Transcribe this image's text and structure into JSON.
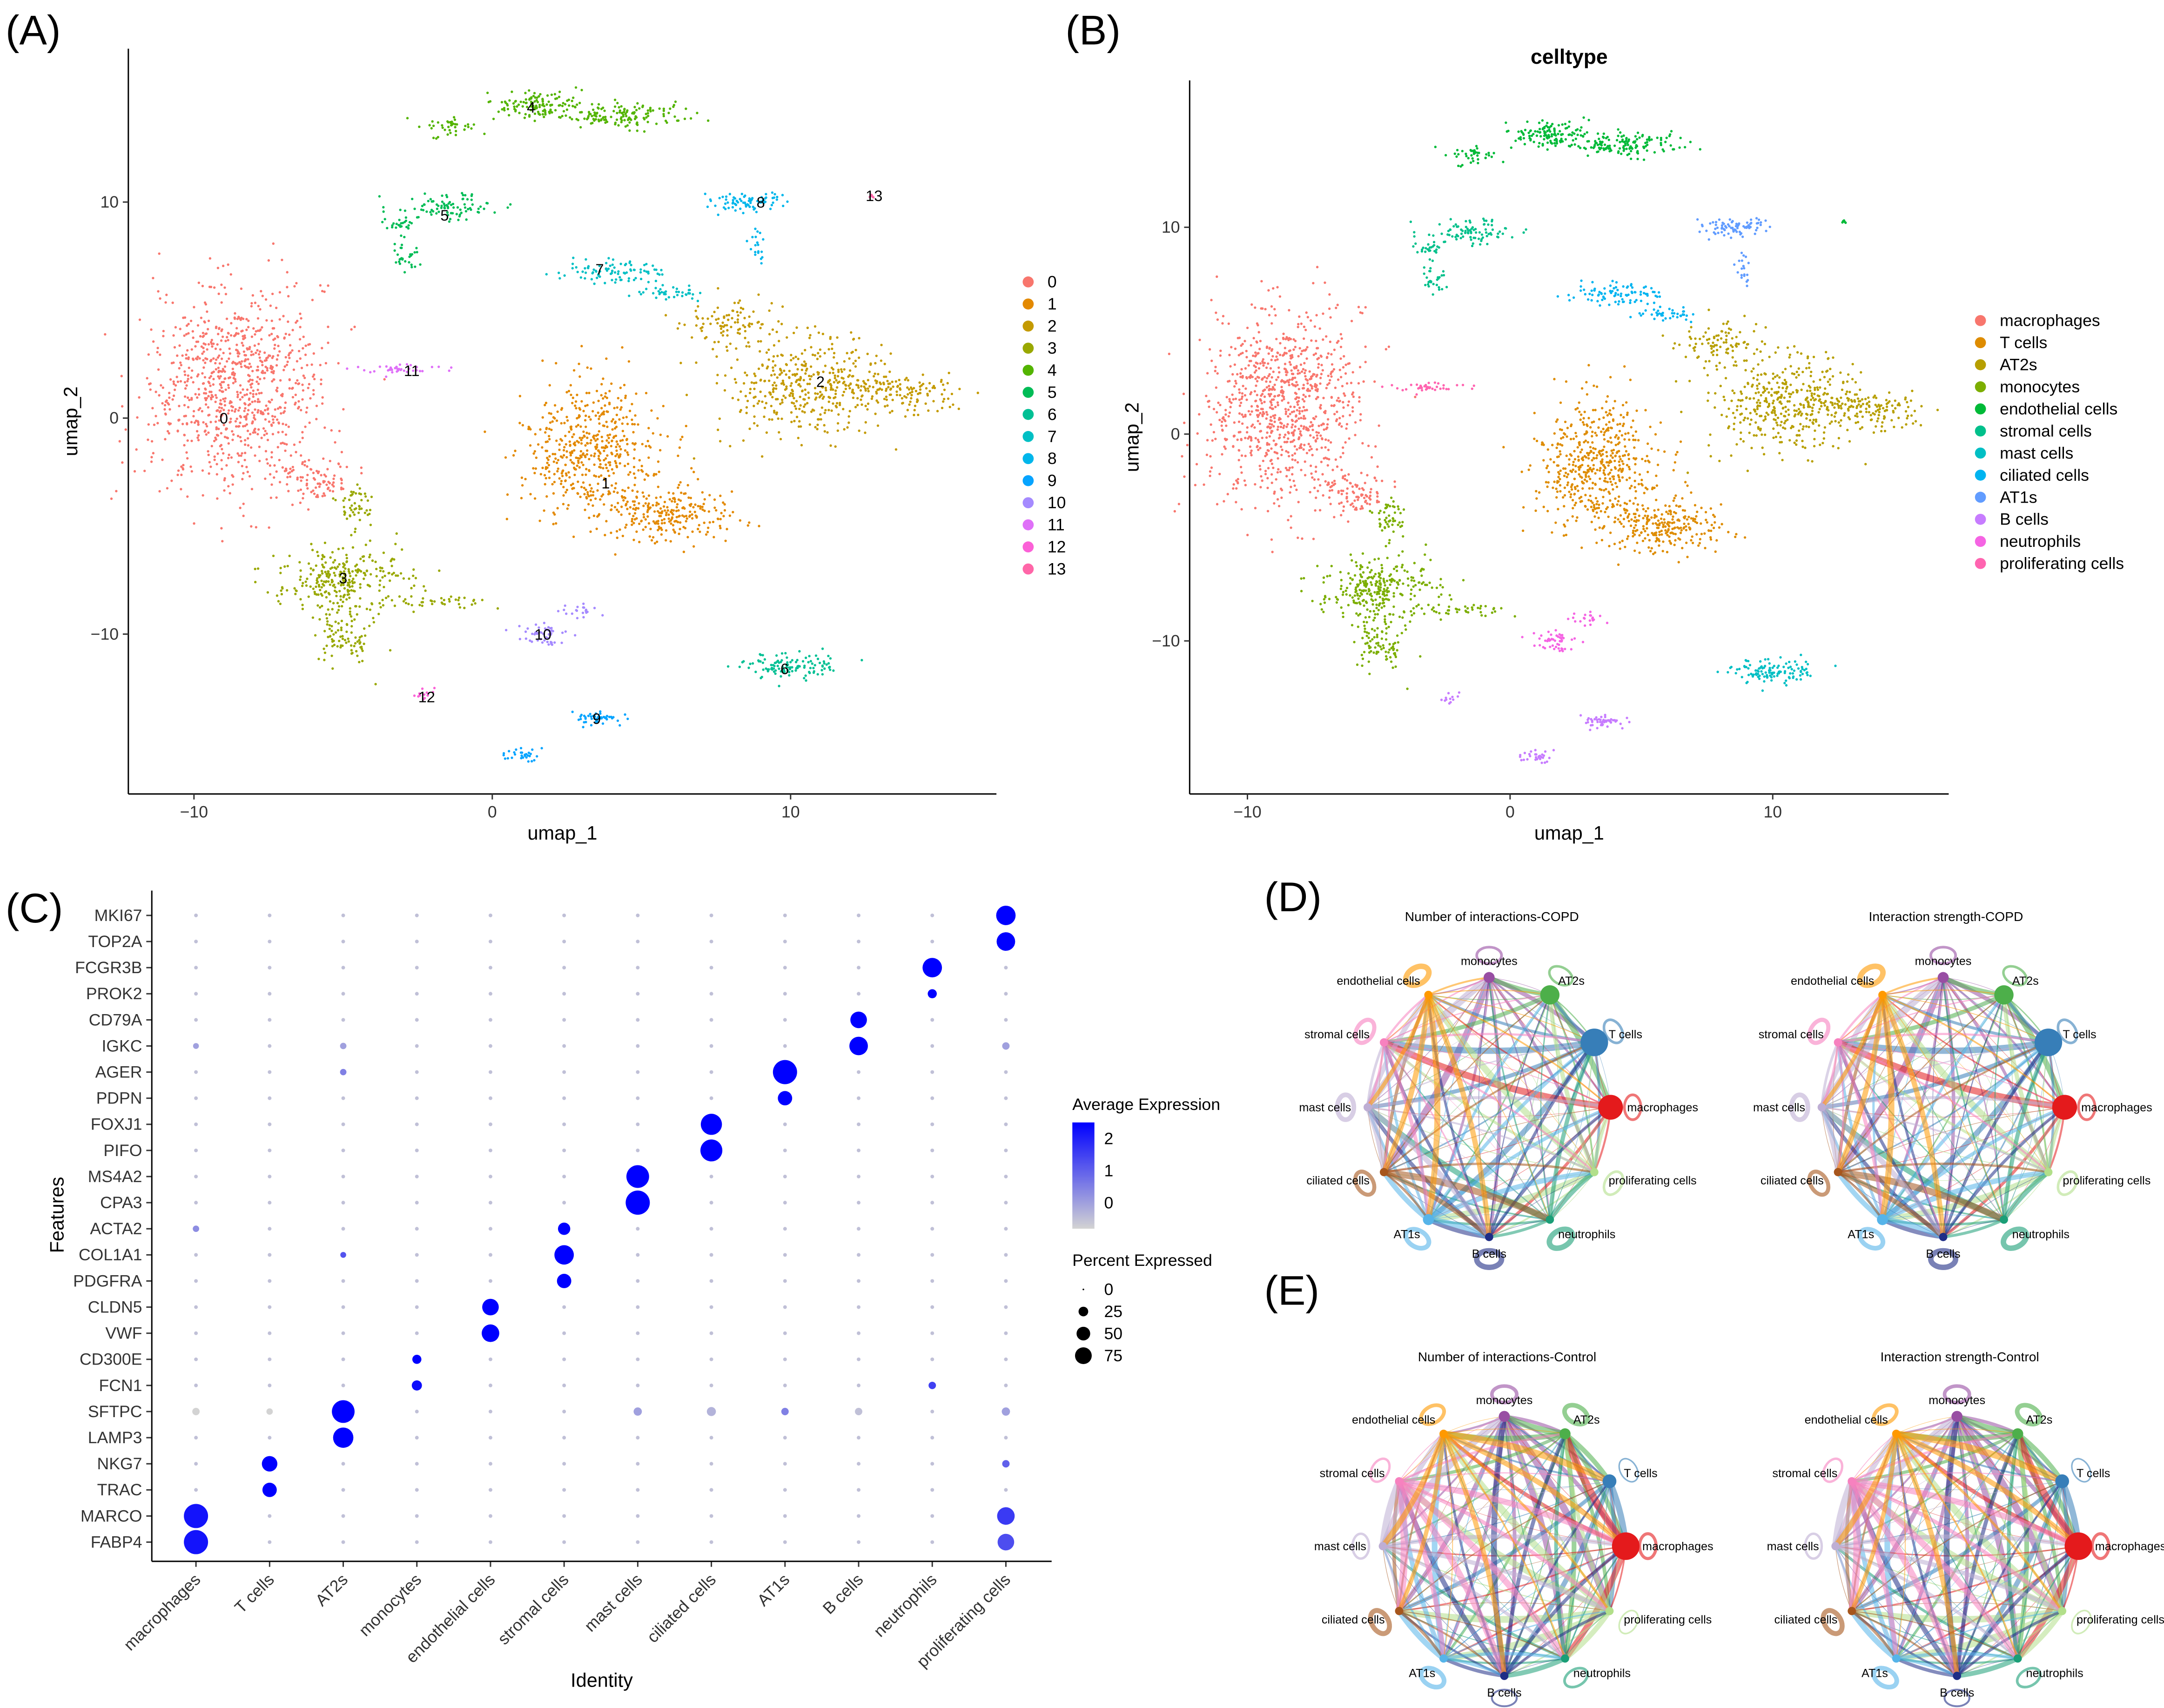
{
  "panels": {
    "A": "(A)",
    "B": "(B)",
    "C": "(C)",
    "D": "(D)",
    "E": "(E)"
  },
  "chart_data": [
    {
      "id": "umap_clusters",
      "type": "scatter",
      "title": "",
      "xlabel": "umap_1",
      "ylabel": "umap_2",
      "xticks": [
        -10,
        0,
        10
      ],
      "yticks": [
        -10,
        0,
        10
      ],
      "xlim": [
        -12.2,
        16.9
      ],
      "ylim": [
        -17.4,
        17.1
      ],
      "legend_position": "right",
      "legend": [
        "0",
        "1",
        "2",
        "3",
        "4",
        "5",
        "6",
        "7",
        "8",
        "9",
        "10",
        "11",
        "12",
        "13"
      ],
      "colors": [
        "#F8766D",
        "#E38900",
        "#C49A00",
        "#99A800",
        "#53B400",
        "#00BC56",
        "#00C094",
        "#00BFC4",
        "#00B6EB",
        "#06A4FF",
        "#A58AFF",
        "#DF70F8",
        "#FB61D7",
        "#FF66A8"
      ],
      "clusters": [
        {
          "label": "0",
          "center": [
            -9,
            0
          ],
          "parts": [
            [
              -8.6,
              1.5,
              2.6,
              4.2,
              900
            ],
            [
              -6,
              -2.8,
              1.2,
              1,
              90
            ]
          ]
        },
        {
          "label": "1",
          "center": [
            3.8,
            -3
          ],
          "parts": [
            [
              3.3,
              -1.5,
              2,
              3,
              520
            ],
            [
              6,
              -4.5,
              2,
              1.3,
              230
            ]
          ]
        },
        {
          "label": "2",
          "center": [
            11,
            1.7
          ],
          "parts": [
            [
              10.5,
              1.5,
              2.5,
              2.2,
              400
            ],
            [
              13.5,
              1.2,
              1.8,
              0.8,
              140
            ],
            [
              8,
              4.5,
              1.5,
              1,
              90
            ]
          ]
        },
        {
          "label": "3",
          "center": [
            -5,
            -7.4
          ],
          "parts": [
            [
              -5,
              -7.5,
              2,
              1.4,
              280
            ],
            [
              -5,
              -10,
              1,
              1.3,
              90
            ],
            [
              -4.5,
              -4,
              0.6,
              1,
              50
            ],
            [
              -2,
              -8.5,
              2,
              0.3,
              40
            ]
          ]
        },
        {
          "label": "4",
          "center": [
            1.3,
            14.4
          ],
          "parts": [
            [
              1.5,
              14.5,
              1.3,
              0.6,
              120
            ],
            [
              4.5,
              14,
              2.2,
              0.6,
              150
            ],
            [
              -1.5,
              13.5,
              1,
              0.4,
              40
            ]
          ]
        },
        {
          "label": "5",
          "center": [
            -1.6,
            9.4
          ],
          "parts": [
            [
              -1.5,
              9.8,
              1.5,
              0.6,
              90
            ],
            [
              -3,
              7.5,
              0.5,
              0.8,
              30
            ],
            [
              -3.2,
              9,
              0.6,
              0.3,
              25
            ]
          ]
        },
        {
          "label": "6",
          "center": [
            9.8,
            -11.6
          ],
          "parts": [
            [
              10,
              -11.5,
              1.5,
              0.5,
              120
            ]
          ]
        },
        {
          "label": "7",
          "center": [
            3.6,
            6.9
          ],
          "parts": [
            [
              4,
              6.8,
              1.5,
              0.4,
              90
            ],
            [
              6,
              5.8,
              1,
              0.3,
              40
            ]
          ]
        },
        {
          "label": "8",
          "center": [
            9,
            10
          ],
          "parts": [
            [
              8.5,
              10,
              1.2,
              0.4,
              80
            ],
            [
              8.9,
              8,
              0.2,
              1,
              20
            ]
          ]
        },
        {
          "label": "9",
          "center": [
            3.5,
            -13.9
          ],
          "parts": [
            [
              3.5,
              -13.9,
              0.8,
              0.3,
              50
            ],
            [
              1,
              -15.6,
              0.6,
              0.3,
              30
            ]
          ]
        },
        {
          "label": "10",
          "center": [
            1.7,
            -10
          ],
          "parts": [
            [
              1.7,
              -10,
              0.7,
              0.5,
              50
            ],
            [
              3,
              -9,
              0.6,
              0.3,
              20
            ]
          ]
        },
        {
          "label": "11",
          "center": [
            -2.7,
            2.2
          ],
          "parts": [
            [
              -3,
              2.3,
              1.5,
              0.2,
              40
            ]
          ]
        },
        {
          "label": "12",
          "center": [
            -2.2,
            -12.9
          ],
          "parts": [
            [
              -2.3,
              -12.8,
              0.3,
              0.3,
              12
            ]
          ]
        },
        {
          "label": "13",
          "center": [
            12.8,
            10.3
          ],
          "parts": [
            [
              12.7,
              10.3,
              0.1,
              0.1,
              5
            ]
          ]
        }
      ]
    },
    {
      "id": "umap_celltype",
      "type": "scatter",
      "title": "celltype",
      "xlabel": "umap_1",
      "ylabel": "umap_2",
      "xticks": [
        -10,
        0,
        10
      ],
      "yticks": [
        -10,
        0,
        10
      ],
      "xlim": [
        -12.2,
        16.7
      ],
      "ylim": [
        -17.4,
        17.1
      ],
      "legend_position": "right",
      "legend": [
        "macrophages",
        "T cells",
        "AT2s",
        "monocytes",
        "endothelial cells",
        "stromal cells",
        "mast cells",
        "ciliated cells",
        "AT1s",
        "B cells",
        "neutrophils",
        "proliferating cells"
      ],
      "colors": [
        "#F8766D",
        "#DE8C00",
        "#B79F00",
        "#7CAE00",
        "#00BA38",
        "#00C08B",
        "#00BFC4",
        "#00B4F0",
        "#619CFF",
        "#C77CFF",
        "#F564E3",
        "#FF64B0"
      ],
      "cluster_to_celltype": [
        0,
        1,
        2,
        3,
        4,
        5,
        6,
        7,
        8,
        9,
        10,
        11,
        9,
        4
      ]
    },
    {
      "id": "dotplot",
      "type": "dot",
      "xlabel": "Identity",
      "ylabel": "Features",
      "identities": [
        "macrophages",
        "T cells",
        "AT2s",
        "monocytes",
        "endothelial cells",
        "stromal cells",
        "mast cells",
        "ciliated cells",
        "AT1s",
        "B cells",
        "neutrophils",
        "proliferating cells"
      ],
      "features": [
        "MKI67",
        "TOP2A",
        "FCGR3B",
        "PROK2",
        "CD79A",
        "IGKC",
        "AGER",
        "PDPN",
        "FOXJ1",
        "PIFO",
        "MS4A2",
        "CPA3",
        "ACTA2",
        "COL1A1",
        "PDGFRA",
        "CLDN5",
        "VWF",
        "CD300E",
        "FCN1",
        "SFTPC",
        "LAMP3",
        "NKG7",
        "TRAC",
        "MARCO",
        "FABP4"
      ],
      "default_percent": 2,
      "default_expression": -0.5,
      "values": [
        [
          "MKI67",
          "proliferating cells",
          55,
          2.5
        ],
        [
          "TOP2A",
          "proliferating cells",
          50,
          2.5
        ],
        [
          "FCGR3B",
          "neutrophils",
          55,
          2.5
        ],
        [
          "PROK2",
          "neutrophils",
          12,
          2.5
        ],
        [
          "CD79A",
          "B cells",
          40,
          2.5
        ],
        [
          "IGKC",
          "B cells",
          50,
          2.5
        ],
        [
          "IGKC",
          "proliferating cells",
          8,
          0
        ],
        [
          "IGKC",
          "macrophages",
          5,
          0
        ],
        [
          "IGKC",
          "AT2s",
          6,
          0
        ],
        [
          "AGER",
          "AT1s",
          85,
          2.5
        ],
        [
          "AGER",
          "AT2s",
          6,
          0.5
        ],
        [
          "PDPN",
          "AT1s",
          30,
          2.5
        ],
        [
          "FOXJ1",
          "ciliated cells",
          65,
          2.5
        ],
        [
          "PIFO",
          "ciliated cells",
          70,
          2.5
        ],
        [
          "MS4A2",
          "mast cells",
          75,
          2.5
        ],
        [
          "CPA3",
          "mast cells",
          85,
          2.5
        ],
        [
          "ACTA2",
          "stromal cells",
          22,
          2.5
        ],
        [
          "ACTA2",
          "macrophages",
          6,
          0.3
        ],
        [
          "COL1A1",
          "stromal cells",
          55,
          2.5
        ],
        [
          "COL1A1",
          "AT2s",
          5,
          1.2
        ],
        [
          "PDGFRA",
          "stromal cells",
          30,
          2.5
        ],
        [
          "CLDN5",
          "endothelial cells",
          40,
          2.5
        ],
        [
          "VWF",
          "endothelial cells",
          45,
          2.5
        ],
        [
          "CD300E",
          "monocytes",
          12,
          2.5
        ],
        [
          "FCN1",
          "monocytes",
          15,
          2.3
        ],
        [
          "FCN1",
          "neutrophils",
          8,
          1.5
        ],
        [
          "SFTPC",
          "AT2s",
          75,
          2.5
        ],
        [
          "SFTPC",
          "macrophages",
          8,
          -0.8
        ],
        [
          "SFTPC",
          "T cells",
          6,
          -0.8
        ],
        [
          "SFTPC",
          "mast cells",
          10,
          0
        ],
        [
          "SFTPC",
          "ciliated cells",
          12,
          -0.3
        ],
        [
          "SFTPC",
          "AT1s",
          8,
          0.5
        ],
        [
          "SFTPC",
          "B cells",
          8,
          -0.5
        ],
        [
          "SFTPC",
          "proliferating cells",
          10,
          0
        ],
        [
          "LAMP3",
          "AT2s",
          60,
          2.5
        ],
        [
          "NKG7",
          "T cells",
          35,
          2.5
        ],
        [
          "NKG7",
          "proliferating cells",
          8,
          1.0
        ],
        [
          "TRAC",
          "T cells",
          30,
          2.5
        ],
        [
          "MARCO",
          "macrophages",
          85,
          2.2
        ],
        [
          "MARCO",
          "proliferating cells",
          45,
          1.6
        ],
        [
          "FABP4",
          "macrophages",
          85,
          2.2
        ],
        [
          "FABP4",
          "proliferating cells",
          40,
          1.3
        ]
      ],
      "color_legend": {
        "title": "Average Expression",
        "ticks": [
          2,
          1,
          0
        ],
        "range": [
          -0.8,
          2.5
        ],
        "low": "#D3D3D3",
        "high": "#0000FF"
      },
      "size_legend": {
        "title": "Percent Expressed",
        "ticks": [
          0,
          25,
          50,
          75
        ]
      }
    },
    {
      "id": "networks",
      "type": "network",
      "nodes": [
        "monocytes",
        "AT2s",
        "T cells",
        "macrophages",
        "proliferating cells",
        "neutrophils",
        "B cells",
        "AT1s",
        "ciliated cells",
        "mast cells",
        "stromal cells",
        "endothelial cells"
      ],
      "node_colors": [
        "#984EA3",
        "#4DAF4A",
        "#377EB8",
        "#E41A1C",
        "#B2DF8A",
        "#1B9E77",
        "#1F2D86",
        "#56B4E9",
        "#A6561D",
        "#BEAED4",
        "#F781BF",
        "#FF9900"
      ],
      "graphs": [
        {
          "title": "Number of interactions-COPD",
          "panel": "D",
          "node_size": [
            4,
            7,
            10,
            9,
            3,
            3,
            3,
            4,
            3,
            3,
            3,
            3
          ]
        },
        {
          "title": "Interaction strength-COPD",
          "panel": "D",
          "node_size": [
            4,
            7,
            10,
            9,
            3,
            3,
            3,
            4,
            3,
            3,
            3,
            3
          ]
        },
        {
          "title": "Number of interactions-Control",
          "panel": "E",
          "node_size": [
            4,
            4,
            5,
            10,
            3,
            3,
            3,
            3,
            3,
            3,
            3,
            3
          ]
        },
        {
          "title": "Interaction strength-Control",
          "panel": "E",
          "node_size": [
            4,
            4,
            5,
            10,
            3,
            3,
            3,
            3,
            3,
            3,
            3,
            3
          ]
        }
      ]
    }
  ]
}
